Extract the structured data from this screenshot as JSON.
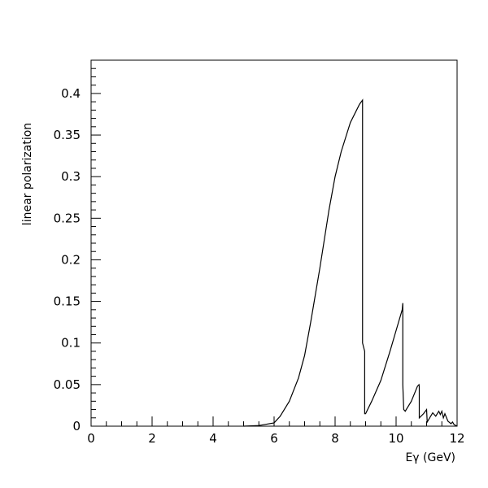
{
  "chart_data": {
    "type": "line",
    "title": "",
    "xlabel": "Eγ (GeV)",
    "ylabel": "linear polarization",
    "xlim": [
      0,
      12
    ],
    "ylim": [
      0,
      0.44
    ],
    "grid": false,
    "xticks": [
      0,
      2,
      4,
      6,
      8,
      10,
      12
    ],
    "xtick_labels": [
      "0",
      "2",
      "4",
      "6",
      "8",
      "10",
      "12"
    ],
    "yticks": [
      0,
      0.05,
      0.1,
      0.15,
      0.2,
      0.25,
      0.3,
      0.35,
      0.4
    ],
    "ytick_labels": [
      "0",
      "0.05",
      "0.1",
      "0.15",
      "0.2",
      "0.25",
      "0.3",
      "0.35",
      "0.4"
    ],
    "line_color": "#000000",
    "series": [
      {
        "x": [
          5.0,
          5.5,
          6.0,
          6.2,
          6.5,
          6.8,
          7.0,
          7.2,
          7.5,
          7.8,
          8.0,
          8.2,
          8.5,
          8.8,
          8.9,
          8.9,
          8.97,
          8.97,
          9.0,
          9.2,
          9.5,
          9.8,
          10.0,
          10.2,
          10.22,
          10.22,
          10.25,
          10.3,
          10.5,
          10.7,
          10.75,
          10.76,
          10.76,
          10.9,
          11.0,
          11.02,
          11.1,
          11.2,
          11.3,
          11.4,
          11.45,
          11.5,
          11.55,
          11.6,
          11.7,
          11.8,
          11.85,
          11.9,
          12.0
        ],
        "y": [
          0.0,
          0.0008,
          0.004,
          0.012,
          0.03,
          0.058,
          0.085,
          0.125,
          0.19,
          0.26,
          0.3,
          0.33,
          0.365,
          0.387,
          0.392,
          0.1,
          0.09,
          0.015,
          0.015,
          0.03,
          0.055,
          0.09,
          0.115,
          0.14,
          0.148,
          0.05,
          0.02,
          0.018,
          0.03,
          0.048,
          0.05,
          0.048,
          0.01,
          0.015,
          0.02,
          0.005,
          0.01,
          0.016,
          0.012,
          0.018,
          0.014,
          0.018,
          0.01,
          0.015,
          0.006,
          0.003,
          0.005,
          0.002,
          0.0
        ]
      }
    ]
  }
}
